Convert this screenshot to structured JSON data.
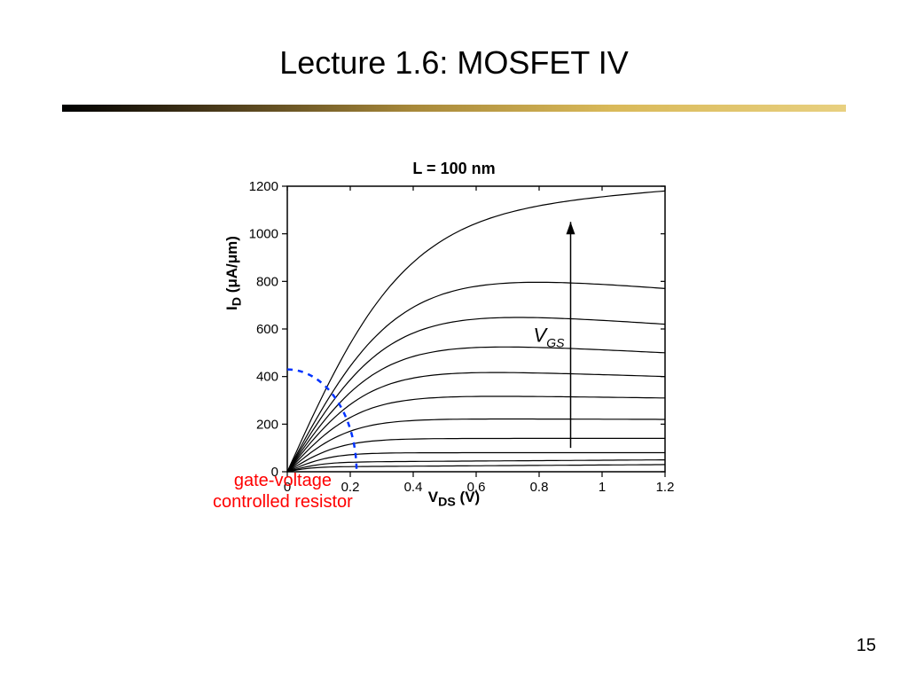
{
  "slide": {
    "title": "Lecture 1.6:  MOSFET IV",
    "page_number": "15",
    "divider_gradient": [
      "#000000",
      "#4a3a1a",
      "#a8893a",
      "#d9b959",
      "#e8d080"
    ]
  },
  "chart": {
    "type": "line",
    "title": "L = 100 nm",
    "title_fontsize": 18,
    "xlabel": "V_DS (V)",
    "xlabel_html": "V<sub>DS</sub> (V)",
    "ylabel": "I_D (uA/um)",
    "ylabel_html": "I<sub>D</sub> (&mu;A/&mu;m)",
    "label_fontsize": 17,
    "xlim": [
      0,
      1.2
    ],
    "ylim": [
      0,
      1200
    ],
    "xtick_labels": [
      "0",
      "0.2",
      "0.4",
      "0.6",
      "0.8",
      "1",
      "1.2"
    ],
    "xtick_positions": [
      0,
      0.2,
      0.4,
      0.6,
      0.8,
      1.0,
      1.2
    ],
    "ytick_labels": [
      "0",
      "200",
      "400",
      "600",
      "800",
      "1000",
      "1200"
    ],
    "ytick_positions": [
      0,
      200,
      400,
      600,
      800,
      1000,
      1200
    ],
    "tick_fontsize": 15,
    "line_color": "#000000",
    "line_width": 1.2,
    "background_color": "#ffffff",
    "axis_color": "#000000",
    "axis_width": 1.5,
    "series_saturation_levels": [
      20,
      40,
      80,
      140,
      225,
      330,
      450,
      580,
      730,
      900,
      1080
    ],
    "series_slope_at_1_2": [
      30,
      50,
      80,
      140,
      220,
      310,
      400,
      500,
      620,
      770,
      1180
    ],
    "linear_region_arc": {
      "color": "#0033ff",
      "dash": "6,6",
      "width": 2.5,
      "center": "plot-origin",
      "radius_x": 0.22,
      "radius_y": 430
    },
    "vgs_arrow": {
      "color": "#000000",
      "width": 1.5,
      "x": 0.9,
      "y_from": 100,
      "y_to": 1050,
      "label": "V_GS",
      "label_html": "<i>V<sub>GS</sub></i>",
      "label_fontsize": 22
    }
  },
  "annotations": {
    "gate_voltage_resistor": {
      "text_line1": "gate-voltage",
      "text_line2": "controlled resistor",
      "color": "#ff0000",
      "fontsize": 20
    }
  }
}
